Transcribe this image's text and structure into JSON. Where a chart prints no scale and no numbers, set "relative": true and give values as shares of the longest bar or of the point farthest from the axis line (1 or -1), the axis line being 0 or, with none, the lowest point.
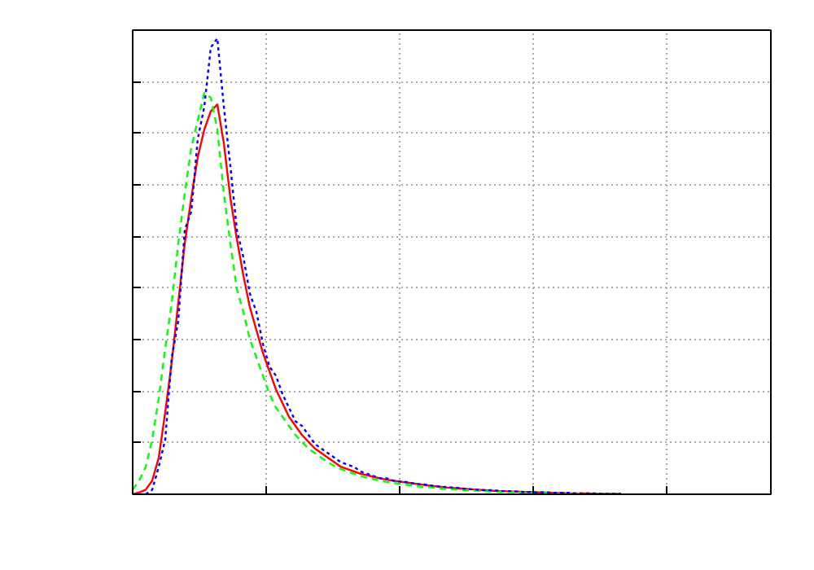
{
  "chart_data": {
    "type": "line",
    "relative": true,
    "grid": true,
    "categories": [
      null,
      null,
      null,
      null,
      null,
      null,
      null,
      null,
      null,
      null,
      null,
      null,
      null,
      null,
      null,
      null,
      null,
      null,
      null,
      null,
      null,
      null,
      null,
      null,
      null,
      null,
      null,
      null,
      null,
      null,
      null,
      null,
      null,
      null,
      null,
      null,
      null,
      null,
      null,
      null,
      null,
      null,
      null,
      null,
      null,
      null,
      null,
      null,
      null,
      null,
      null,
      null,
      null,
      null,
      null,
      null,
      null,
      null,
      null,
      null,
      null,
      null,
      null,
      null,
      null,
      null,
      null,
      null,
      null,
      null,
      null,
      null,
      null,
      null,
      null,
      null
    ],
    "series": [
      {
        "color": "#ff0000",
        "line_style": "solid",
        "values": [
          0,
          0.004,
          0.01,
          0.03,
          0.08,
          0.18,
          0.29,
          0.42,
          0.55,
          0.65,
          0.74,
          0.8,
          0.84,
          0.855,
          0.77,
          0.65,
          0.56,
          0.48,
          0.41,
          0.36,
          0.31,
          0.27,
          0.23,
          0.2,
          0.17,
          0.15,
          0.13,
          0.115,
          0.1,
          0.09,
          0.08,
          0.07,
          0.06,
          0.055,
          0.05,
          0.045,
          0.042,
          0.038,
          0.035,
          0.032,
          0.03,
          0.028,
          0.026,
          0.024,
          0.022,
          0.02,
          0.018,
          0.017,
          0.015,
          0.014,
          0.013,
          0.012,
          0.011,
          0.01,
          0.009,
          0.008,
          0.007,
          0.007,
          0.006,
          0.006,
          0.005,
          0.005,
          0.004,
          0.004,
          0.003,
          0.003,
          0.003,
          0.002,
          0.002,
          0.002,
          0.002,
          0.001,
          0.001,
          0.001,
          0.001,
          0.001
        ]
      },
      {
        "color": "#00ff00",
        "line_style": "dashed",
        "values": [
          0.01,
          0.03,
          0.06,
          0.12,
          0.21,
          0.32,
          0.42,
          0.55,
          0.66,
          0.76,
          0.82,
          0.88,
          0.87,
          0.8,
          0.66,
          0.55,
          0.45,
          0.4,
          0.34,
          0.3,
          0.26,
          0.22,
          0.19,
          0.17,
          0.15,
          0.13,
          0.115,
          0.1,
          0.09,
          0.08,
          0.07,
          0.062,
          0.055,
          0.05,
          0.045,
          0.04,
          0.036,
          0.033,
          0.03,
          0.027,
          0.025,
          0.023,
          0.021,
          0.019,
          0.017,
          0.016,
          0.015,
          0.013,
          0.012,
          0.011,
          0.01,
          0.009,
          0.008,
          0.008,
          0.007,
          0.006,
          0.006,
          0.005,
          0.005,
          0.004,
          0.004,
          0.003,
          0.003,
          0.003,
          0.002,
          0.002,
          0.002,
          0.002,
          0.001,
          0.001,
          0.001,
          null,
          null,
          null,
          null,
          null
        ]
      },
      {
        "color": "#0000ff",
        "line_style": "dotted",
        "values": [
          0,
          0,
          0,
          0.01,
          0.06,
          0.12,
          0.3,
          0.38,
          0.58,
          0.62,
          0.78,
          0.85,
          0.98,
          1,
          0.85,
          0.72,
          0.58,
          0.52,
          0.44,
          0.4,
          0.33,
          0.28,
          0.26,
          0.22,
          0.19,
          0.16,
          0.15,
          0.13,
          0.11,
          0.1,
          0.09,
          0.08,
          0.07,
          0.065,
          0.06,
          0.05,
          0.045,
          0.04,
          0.035,
          0.035,
          0.03,
          0.028,
          0.027,
          0.024,
          0.022,
          0.021,
          0.019,
          0.017,
          0.016,
          0.015,
          0.014,
          0.012,
          0.011,
          0.01,
          0.009,
          0.009,
          0.008,
          0.007,
          0.007,
          0.006,
          0.005,
          0.005,
          0.004,
          0.004,
          0.004,
          0.003,
          0.003,
          0.003,
          0.002,
          0.002,
          0.002,
          0.002,
          0.001,
          0.001,
          0.001,
          0.001
        ]
      }
    ]
  }
}
